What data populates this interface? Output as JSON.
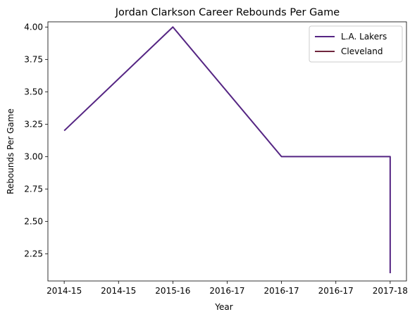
{
  "chart_data": {
    "type": "line",
    "title": "Jordan Clarkson Career Rebounds Per Game",
    "xlabel": "Year",
    "ylabel": "Rebounds Per Game",
    "x_tick_labels": [
      "2014-15",
      "2014-15",
      "2015-16",
      "2016-17",
      "2016-17",
      "2016-17",
      "2017-18"
    ],
    "x_tick_positions": [
      0,
      0.5,
      1,
      1.5,
      2,
      2.5,
      3
    ],
    "xlim": [
      -0.15,
      3.15
    ],
    "ylim": [
      2.04,
      4.04
    ],
    "y_ticks": [
      2.25,
      2.5,
      2.75,
      3.0,
      3.25,
      3.5,
      3.75,
      4.0
    ],
    "y_tick_labels": [
      "2.25",
      "2.50",
      "2.75",
      "3.00",
      "3.25",
      "3.50",
      "3.75",
      "4.00"
    ],
    "legend_position": "top-right",
    "series": [
      {
        "name": "L.A. Lakers",
        "color": "#552583",
        "x": [
          0,
          1,
          2,
          3,
          3
        ],
        "y": [
          3.2,
          4.0,
          3.0,
          3.0,
          2.1
        ]
      },
      {
        "name": "Cleveland",
        "color": "#6f263d",
        "x": [],
        "y": []
      }
    ]
  }
}
